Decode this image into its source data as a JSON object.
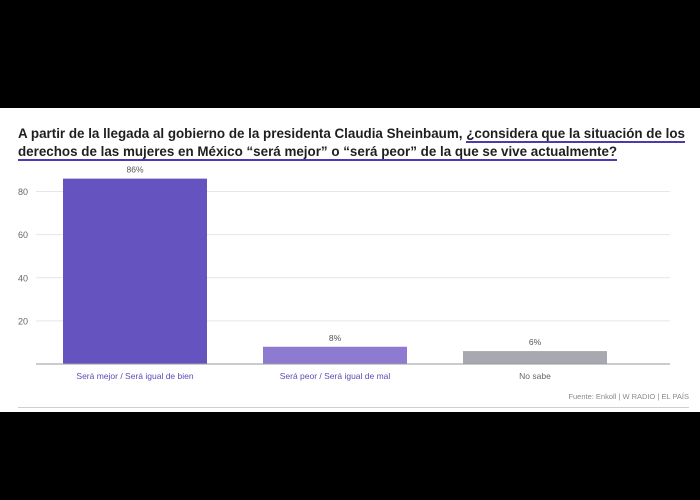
{
  "header": {
    "title_part1": "A partir de la llegada al gobierno de la presidenta Claudia Sheinbaum, ",
    "title_part2": "¿considera que la situación de los derechos de las mujeres en México “será mejor” o “será peor” de la que se vive actualmente?"
  },
  "footer": {
    "source": "Fuente: Enkoll | W RADIO | EL PAÍS"
  },
  "chart_data": {
    "type": "bar",
    "title": "A partir de la llegada al gobierno de la presidenta Claudia Sheinbaum, ¿considera que la situación de los derechos de las mujeres en México “será mejor” o “será peor” de la que se vive actualmente?",
    "categories": [
      "Será mejor / Será igual de bien",
      "Será peor / Será igual de mal",
      "No sabe"
    ],
    "values": [
      86,
      8,
      6
    ],
    "value_labels": [
      "86%",
      "8%",
      "6%"
    ],
    "colors": [
      "#6554c0",
      "#8e7bd1",
      "#a8a8b0"
    ],
    "yticks": [
      "80",
      "60",
      "40",
      "20"
    ],
    "ylim": [
      0,
      90
    ],
    "grid": true
  }
}
